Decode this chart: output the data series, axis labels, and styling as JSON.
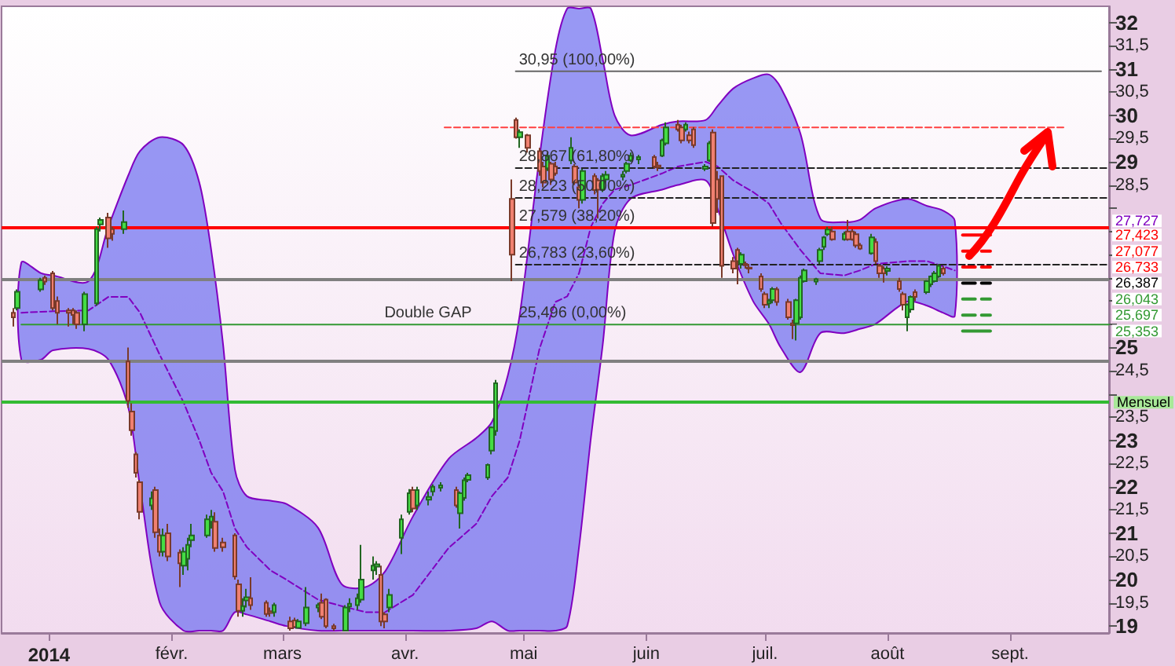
{
  "chart_data": {
    "type": "candlestick",
    "x": [
      "2013-12-23",
      "2013-12-24",
      "2013-12-30",
      "2013-12-31",
      "2014-01-02",
      "2014-01-03",
      "2014-01-06",
      "2014-01-07",
      "2014-01-08",
      "2014-01-10",
      "2014-01-13",
      "2014-01-14",
      "2014-01-16",
      "2014-01-17",
      "2014-01-20",
      "2014-01-21",
      "2014-01-22",
      "2014-01-23",
      "2014-01-24",
      "2014-01-27",
      "2014-01-28",
      "2014-01-29",
      "2014-01-30",
      "2014-01-31",
      "2014-02-03",
      "2014-02-04",
      "2014-02-05",
      "2014-02-06",
      "2014-02-10",
      "2014-02-11",
      "2014-02-12",
      "2014-02-14",
      "2014-02-17",
      "2014-02-18",
      "2014-02-19",
      "2014-02-20",
      "2014-02-21",
      "2014-02-25",
      "2014-02-26",
      "2014-02-27",
      "2014-03-03",
      "2014-03-04",
      "2014-03-05",
      "2014-03-07",
      "2014-03-10",
      "2014-03-11",
      "2014-03-12",
      "2014-03-14",
      "2014-03-17",
      "2014-03-18",
      "2014-03-20",
      "2014-03-21",
      "2014-03-24",
      "2014-03-25",
      "2014-03-26",
      "2014-03-27",
      "2014-03-28",
      "2014-03-31",
      "2014-04-02",
      "2014-04-03",
      "2014-04-04",
      "2014-04-07",
      "2014-04-08",
      "2014-04-10",
      "2014-04-14",
      "2014-04-15",
      "2014-04-16",
      "2014-04-17",
      "2014-04-22",
      "2014-04-23",
      "2014-04-24",
      "2014-04-28",
      "2014-04-29",
      "2014-04-30",
      "2014-05-02",
      "2014-05-05",
      "2014-05-06",
      "2014-05-07",
      "2014-05-08",
      "2014-05-09",
      "2014-05-13",
      "2014-05-14",
      "2014-05-15",
      "2014-05-16",
      "2014-05-19",
      "2014-05-20",
      "2014-05-21",
      "2014-05-22",
      "2014-05-26",
      "2014-05-27",
      "2014-05-28",
      "2014-05-30",
      "2014-06-03",
      "2014-06-04",
      "2014-06-05",
      "2014-06-06",
      "2014-06-09",
      "2014-06-10",
      "2014-06-11",
      "2014-06-12",
      "2014-06-13",
      "2014-06-16",
      "2014-06-17",
      "2014-06-18",
      "2014-06-19",
      "2014-06-20",
      "2014-06-23",
      "2014-06-24",
      "2014-06-25",
      "2014-06-26",
      "2014-06-27",
      "2014-06-30",
      "2014-07-01",
      "2014-07-02",
      "2014-07-03",
      "2014-07-04",
      "2014-07-07",
      "2014-07-08",
      "2014-07-09",
      "2014-07-10",
      "2014-07-11",
      "2014-07-14",
      "2014-07-15",
      "2014-07-16",
      "2014-07-17",
      "2014-07-18",
      "2014-07-21",
      "2014-07-22",
      "2014-07-23",
      "2014-07-24",
      "2014-07-25",
      "2014-07-28",
      "2014-07-29",
      "2014-07-30",
      "2014-07-31",
      "2014-08-01",
      "2014-08-04",
      "2014-08-05",
      "2014-08-06",
      "2014-08-07",
      "2014-08-08",
      "2014-08-11",
      "2014-08-12",
      "2014-08-13",
      "2014-08-14",
      "2014-08-15"
    ],
    "ohlc": [
      [
        25.75,
        25.85,
        25.45,
        25.65
      ],
      [
        25.85,
        26.25,
        25.8,
        26.2
      ],
      [
        26.25,
        26.5,
        26.2,
        26.45
      ],
      [
        26.5,
        26.55,
        26.35,
        26.42
      ],
      [
        26.6,
        26.65,
        25.8,
        25.85
      ],
      [
        26.0,
        26.1,
        25.5,
        25.75
      ],
      [
        25.8,
        25.85,
        25.45,
        25.75
      ],
      [
        25.8,
        25.85,
        25.5,
        25.7
      ],
      [
        25.75,
        25.8,
        25.4,
        25.5
      ],
      [
        25.5,
        26.2,
        25.35,
        26.15
      ],
      [
        25.95,
        27.6,
        25.9,
        27.55
      ],
      [
        27.65,
        27.8,
        27.5,
        27.75
      ],
      [
        27.8,
        27.9,
        27.15,
        27.35
      ],
      [
        27.55,
        27.6,
        27.3,
        27.45
      ],
      [
        27.55,
        27.95,
        27.45,
        27.7
      ],
      [
        24.7,
        25.0,
        23.7,
        23.85
      ],
      [
        23.62,
        23.8,
        23.1,
        23.22
      ],
      [
        22.7,
        22.75,
        22.2,
        22.3
      ],
      [
        22.1,
        22.15,
        21.3,
        21.46
      ],
      [
        21.6,
        21.9,
        21.5,
        21.75
      ],
      [
        21.93,
        22.0,
        20.9,
        21.02
      ],
      [
        20.95,
        21.1,
        20.5,
        20.6
      ],
      [
        20.6,
        21.1,
        20.5,
        20.95
      ],
      [
        21.0,
        21.2,
        20.4,
        20.5
      ],
      [
        20.58,
        20.65,
        19.84,
        20.35
      ],
      [
        20.3,
        20.7,
        20.1,
        20.6
      ],
      [
        20.45,
        20.9,
        20.2,
        20.75
      ],
      [
        20.85,
        21.2,
        20.7,
        20.95
      ],
      [
        20.95,
        21.4,
        20.9,
        21.3
      ],
      [
        21.25,
        21.5,
        21.1,
        21.36
      ],
      [
        21.25,
        21.45,
        20.6,
        20.68
      ],
      [
        20.8,
        20.9,
        20.6,
        20.7
      ],
      [
        20.95,
        21.0,
        20.0,
        20.07
      ],
      [
        19.9,
        20.0,
        19.2,
        19.33
      ],
      [
        19.33,
        19.6,
        19.2,
        19.43
      ],
      [
        19.55,
        19.8,
        19.4,
        19.62
      ],
      [
        19.6,
        20.05,
        19.35,
        19.45
      ],
      [
        19.5,
        19.55,
        19.2,
        19.26
      ],
      [
        19.32,
        19.4,
        19.2,
        19.28
      ],
      [
        19.3,
        19.5,
        19.2,
        19.45
      ],
      [
        19.1,
        19.2,
        18.9,
        18.95
      ],
      [
        19.12,
        19.18,
        18.98,
        18.98
      ],
      [
        18.96,
        19.15,
        18.96,
        19.1
      ],
      [
        19.06,
        19.84,
        19.0,
        19.4
      ],
      [
        19.4,
        19.5,
        19.3,
        19.45
      ],
      [
        19.5,
        19.7,
        19.15,
        19.2
      ],
      [
        19.57,
        19.6,
        18.95,
        19.0
      ],
      [
        19.0,
        19.05,
        18.9,
        18.95
      ],
      [
        18.9,
        19.45,
        18.9,
        19.4
      ],
      [
        19.42,
        19.6,
        19.3,
        19.48
      ],
      [
        19.45,
        19.7,
        19.35,
        19.6
      ],
      [
        19.57,
        20.75,
        19.5,
        20.0
      ],
      [
        20.2,
        20.5,
        20.0,
        20.3
      ],
      [
        20.28,
        20.4,
        20.1,
        20.33
      ],
      [
        20.1,
        20.3,
        19.0,
        19.1
      ],
      [
        19.25,
        19.3,
        18.95,
        19.1
      ],
      [
        19.4,
        19.8,
        19.3,
        19.67
      ],
      [
        20.9,
        21.4,
        20.55,
        21.3
      ],
      [
        21.46,
        21.95,
        21.4,
        21.86
      ],
      [
        21.93,
        22.0,
        21.45,
        21.53
      ],
      [
        21.6,
        22.0,
        21.5,
        21.93
      ],
      [
        21.72,
        21.9,
        21.6,
        21.78
      ],
      [
        21.9,
        22.05,
        21.8,
        22.0
      ],
      [
        21.98,
        22.1,
        21.9,
        22.03
      ],
      [
        21.93,
        22.0,
        21.55,
        21.6
      ],
      [
        21.43,
        21.9,
        21.1,
        21.86
      ],
      [
        21.76,
        22.2,
        21.7,
        22.14
      ],
      [
        22.15,
        22.3,
        22.1,
        22.25
      ],
      [
        22.2,
        22.5,
        22.15,
        22.47
      ],
      [
        22.78,
        23.3,
        22.7,
        23.28
      ],
      [
        23.2,
        24.3,
        23.1,
        24.23
      ],
      [
        28.2,
        28.62,
        26.43,
        27.0
      ],
      [
        29.9,
        29.95,
        29.5,
        29.53
      ],
      [
        29.53,
        29.7,
        29.3,
        29.64
      ],
      [
        29.57,
        29.6,
        29.2,
        29.3
      ],
      [
        29.23,
        29.3,
        28.7,
        28.8
      ],
      [
        28.9,
        29.0,
        28.45,
        28.55
      ],
      [
        28.86,
        29.2,
        28.8,
        29.13
      ],
      [
        28.96,
        29.0,
        28.5,
        28.62
      ],
      [
        28.9,
        29.0,
        28.7,
        28.75
      ],
      [
        29.03,
        29.53,
        28.95,
        29.3
      ],
      [
        28.9,
        28.95,
        28.5,
        28.55
      ],
      [
        28.45,
        28.5,
        28.0,
        28.18
      ],
      [
        28.18,
        28.85,
        28.1,
        28.8
      ],
      [
        28.69,
        28.75,
        28.3,
        28.39
      ],
      [
        28.6,
        28.65,
        27.78,
        28.4
      ],
      [
        28.4,
        28.75,
        28.35,
        28.69
      ],
      [
        28.62,
        28.8,
        28.55,
        28.72
      ],
      [
        28.68,
        28.8,
        28.6,
        28.72
      ],
      [
        28.8,
        29.0,
        28.75,
        28.96
      ],
      [
        29.03,
        29.2,
        29.0,
        29.13
      ],
      [
        29.05,
        29.15,
        28.95,
        29.1
      ],
      [
        29.1,
        29.15,
        28.85,
        28.9
      ],
      [
        28.92,
        29.0,
        28.8,
        28.88
      ],
      [
        29.13,
        29.5,
        29.1,
        29.46
      ],
      [
        29.4,
        29.85,
        29.35,
        29.74
      ],
      [
        29.8,
        29.9,
        29.65,
        29.7
      ],
      [
        29.74,
        29.8,
        29.4,
        29.46
      ],
      [
        29.7,
        29.85,
        29.65,
        29.8
      ],
      [
        29.57,
        29.65,
        29.4,
        29.46
      ],
      [
        29.7,
        29.75,
        29.3,
        29.36
      ],
      [
        28.85,
        28.95,
        28.8,
        28.9
      ],
      [
        29.03,
        29.45,
        29.0,
        29.4
      ],
      [
        29.63,
        29.7,
        27.6,
        27.68
      ],
      [
        28.62,
        28.8,
        27.9,
        28.2
      ],
      [
        28.69,
        28.7,
        26.5,
        26.76
      ],
      [
        26.86,
        26.95,
        26.6,
        26.7
      ],
      [
        27.1,
        27.15,
        26.36,
        26.86
      ],
      [
        26.8,
        27.05,
        26.7,
        27.0
      ],
      [
        26.8,
        26.85,
        26.7,
        26.77
      ],
      [
        26.72,
        26.8,
        26.6,
        26.7
      ],
      [
        26.53,
        26.6,
        26.2,
        26.26
      ],
      [
        26.15,
        26.2,
        25.85,
        25.92
      ],
      [
        25.95,
        26.05,
        25.85,
        26.0
      ],
      [
        26.02,
        26.3,
        25.95,
        26.26
      ],
      [
        26.25,
        26.3,
        25.9,
        25.98
      ],
      [
        25.98,
        26.05,
        25.6,
        25.65
      ],
      [
        25.52,
        25.6,
        25.18,
        25.48
      ],
      [
        25.52,
        26.05,
        25.15,
        26.02
      ],
      [
        25.65,
        26.55,
        25.6,
        26.5
      ],
      [
        26.43,
        26.7,
        26.4,
        26.66
      ],
      [
        26.42,
        26.5,
        26.35,
        26.47
      ],
      [
        26.86,
        27.15,
        26.8,
        27.1
      ],
      [
        27.17,
        27.4,
        27.1,
        27.37
      ],
      [
        27.44,
        27.6,
        27.4,
        27.54
      ],
      [
        27.5,
        27.6,
        27.3,
        27.33
      ],
      [
        27.33,
        27.5,
        27.3,
        27.45
      ],
      [
        27.5,
        27.75,
        27.3,
        27.33
      ],
      [
        27.5,
        27.55,
        27.3,
        27.33
      ],
      [
        27.44,
        27.5,
        27.15,
        27.2
      ],
      [
        27.2,
        27.25,
        27.1,
        27.13
      ],
      [
        27.03,
        27.45,
        27.0,
        27.37
      ],
      [
        27.27,
        27.35,
        26.8,
        26.86
      ],
      [
        26.76,
        26.8,
        26.5,
        26.6
      ],
      [
        26.7,
        26.75,
        26.4,
        26.6
      ],
      [
        26.65,
        26.75,
        26.55,
        26.7
      ],
      [
        26.43,
        26.5,
        26.2,
        26.26
      ],
      [
        26.15,
        26.2,
        25.8,
        25.92
      ],
      [
        25.65,
        25.95,
        25.35,
        25.92
      ],
      [
        25.82,
        26.12,
        25.75,
        26.09
      ],
      [
        26.19,
        26.25,
        26.0,
        26.09
      ],
      [
        26.19,
        26.45,
        26.15,
        26.43
      ],
      [
        26.36,
        26.55,
        26.3,
        26.53
      ],
      [
        26.43,
        26.65,
        26.4,
        26.6
      ],
      [
        26.53,
        26.8,
        26.5,
        26.76
      ],
      [
        26.7,
        26.75,
        26.55,
        26.6
      ]
    ],
    "series": [
      {
        "type": "line",
        "color": "#8000c0",
        "line_style": "dashed",
        "x": [
          "2013-12-25",
          "2013-12-30",
          "2014-01-02",
          "2014-01-11",
          "2014-01-16",
          "2014-01-21",
          "2014-01-24",
          "2014-01-29",
          "2014-02-04",
          "2014-02-08",
          "2014-02-11",
          "2014-02-14",
          "2014-02-17",
          "2014-02-20",
          "2014-02-26",
          "2014-03-02",
          "2014-03-10",
          "2014-03-16",
          "2014-03-22",
          "2014-03-27",
          "2014-04-03",
          "2014-04-12",
          "2014-04-19",
          "2014-04-23",
          "2014-04-27",
          "2014-04-30",
          "2014-05-05",
          "2014-05-09",
          "2014-05-12",
          "2014-05-15",
          "2014-05-18",
          "2014-05-21",
          "2014-05-24",
          "2014-05-28",
          "2014-06-05",
          "2014-06-09",
          "2014-06-16",
          "2014-06-19",
          "2014-06-23",
          "2014-06-28",
          "2014-07-02",
          "2014-07-05",
          "2014-07-10",
          "2014-07-15",
          "2014-07-21",
          "2014-07-25",
          "2014-07-29",
          "2014-08-06",
          "2014-08-11",
          "2014-08-15",
          "2014-08-18"
        ],
        "values": [
          25.75,
          25.77,
          25.78,
          25.8,
          26.09,
          26.09,
          25.75,
          24.84,
          23.82,
          23.0,
          22.3,
          21.9,
          21.1,
          20.7,
          20.2,
          20.0,
          19.57,
          19.43,
          19.3,
          19.3,
          19.67,
          20.68,
          21.2,
          21.8,
          22.2,
          23.0,
          24.97,
          25.98,
          26.1,
          26.6,
          27.6,
          28.1,
          28.4,
          28.5,
          28.75,
          28.9,
          29.0,
          28.9,
          28.6,
          28.35,
          28.1,
          27.68,
          27.1,
          26.6,
          26.55,
          26.66,
          26.8,
          26.86,
          26.86,
          26.75,
          26.66
        ],
        "lower": [
          24.74,
          24.74,
          24.94,
          24.97,
          24.74,
          23.72,
          22.0,
          19.5,
          18.9,
          18.9,
          18.9,
          18.9,
          19.3,
          19.25,
          19.1,
          19.0,
          18.9,
          18.9,
          18.9,
          18.9,
          18.9,
          18.9,
          18.95,
          19.1,
          18.9,
          18.9,
          18.9,
          18.9,
          19.0,
          20.7,
          23.05,
          25.07,
          27.5,
          28.2,
          28.4,
          28.5,
          28.6,
          28.0,
          27.0,
          26.0,
          25.51,
          25.0,
          24.47,
          25.31,
          25.31,
          25.4,
          25.51,
          25.99,
          25.9,
          25.75,
          25.68
        ],
        "upper": [
          26.83,
          26.6,
          26.55,
          26.43,
          27.6,
          28.7,
          29.23,
          29.53,
          29.36,
          28.55,
          27.1,
          25.07,
          22.37,
          21.8,
          21.7,
          21.63,
          21.12,
          19.9,
          19.84,
          20.18,
          21.36,
          22.6,
          23.05,
          23.4,
          24.4,
          25.7,
          29.1,
          31.4,
          32.3,
          32.3,
          32.3,
          31.2,
          30.0,
          29.57,
          29.8,
          29.87,
          29.9,
          30.2,
          30.58,
          30.8,
          30.88,
          30.6,
          29.6,
          27.78,
          27.7,
          27.75,
          28.0,
          28.2,
          28.05,
          27.95,
          27.73
        ]
      },
      {
        "type": "line",
        "color": "#666666",
        "line_style": "solid",
        "x": [
          "2014-04-29",
          "2014-09-24"
        ],
        "values": [
          30.95,
          30.95
        ]
      },
      {
        "type": "line",
        "color": "#ff4040",
        "line_style": "dashed",
        "x": [
          "2014-04-11",
          "2014-09-15"
        ],
        "values": [
          29.74,
          29.74
        ]
      },
      {
        "type": "line",
        "color": "#222222",
        "line_style": "dashed",
        "x": [
          "2014-04-29",
          "2014-09-26"
        ],
        "values": [
          28.867,
          28.867
        ]
      },
      {
        "type": "line",
        "color": "#222222",
        "line_style": "dashed",
        "x": [
          "2014-04-29",
          "2014-09-26"
        ],
        "values": [
          28.223,
          28.223
        ]
      },
      {
        "type": "line",
        "color": "#222222",
        "line_style": "dashed",
        "x": [
          "2014-04-29",
          "2014-09-26"
        ],
        "values": [
          26.783,
          26.783
        ]
      },
      {
        "type": "line",
        "color": "#339933",
        "line_style": "solid",
        "x": [
          "2013-12-25",
          "2014-09-26"
        ],
        "values": [
          25.496,
          25.496
        ]
      },
      {
        "type": "line",
        "name": "27,423",
        "color": "#ff0000",
        "line_style": "solid",
        "x": [
          "2014-08-20",
          "2014-08-27"
        ],
        "values": [
          27.423,
          27.423
        ]
      },
      {
        "type": "line",
        "name": "27,077",
        "color": "#ff0000",
        "line_style": "dashed",
        "x": [
          "2014-08-20",
          "2014-08-27"
        ],
        "values": [
          27.077,
          27.077
        ]
      },
      {
        "type": "line",
        "name": "26,733",
        "color": "#ff0000",
        "line_style": "dashed",
        "x": [
          "2014-08-20",
          "2014-08-27"
        ],
        "values": [
          26.733,
          26.733
        ]
      },
      {
        "type": "line",
        "name": "26,387",
        "color": "#000000",
        "line_style": "dashed",
        "x": [
          "2014-08-20",
          "2014-08-27"
        ],
        "values": [
          26.387,
          26.387
        ]
      },
      {
        "type": "line",
        "name": "26,043",
        "color": "#339933",
        "line_style": "dashed",
        "x": [
          "2014-08-20",
          "2014-08-27"
        ],
        "values": [
          26.043,
          26.043
        ]
      },
      {
        "type": "line",
        "name": "25,697",
        "color": "#339933",
        "line_style": "dashed",
        "x": [
          "2014-08-20",
          "2014-08-27"
        ],
        "values": [
          25.697,
          25.697
        ]
      },
      {
        "type": "line",
        "name": "25,353",
        "color": "#339933",
        "line_style": "solid",
        "x": [
          "2014-08-20",
          "2014-08-27"
        ],
        "values": [
          25.353,
          25.353
        ]
      }
    ],
    "ref_lines": [
      {
        "axis": "y",
        "value": 27.58,
        "color": "#ff0000"
      },
      {
        "axis": "y",
        "value": 26.46,
        "color": "#808080"
      },
      {
        "axis": "y",
        "value": 24.7,
        "color": "#808080"
      },
      {
        "axis": "y",
        "value": 23.82,
        "color": "#33bb33",
        "label": "Mensuel"
      }
    ],
    "annotations": [
      {
        "text": "30,95 (100,00%)",
        "x": "2014-04-29",
        "y": 30.95
      },
      {
        "text": "28,867 (61,80%)",
        "x": "2014-04-29",
        "y": 28.867
      },
      {
        "text": "28,223 (50,00%)",
        "x": "2014-04-29",
        "y": 28.223
      },
      {
        "text": "27,579 (38,20%)",
        "x": "2014-04-29",
        "y": 27.579
      },
      {
        "text": "26,783 (23,60%)",
        "x": "2014-04-29",
        "y": 26.783
      },
      {
        "text": "25,496 (0,00%)",
        "x": "2014-04-29",
        "y": 25.496
      },
      {
        "text": "Double GAP",
        "x": "2014-03-26",
        "y": 25.496
      },
      {
        "text": "27,727",
        "x": "2014-09-26",
        "y": 27.727
      }
    ],
    "xlim": [
      "2013-12-20",
      "2014-09-26"
    ],
    "xticks": [
      {
        "value": "2014-01-01",
        "label": "2014"
      },
      {
        "value": "2014-02-01",
        "label": "févr."
      },
      {
        "value": "2014-03-01",
        "label": "mars"
      },
      {
        "value": "2014-04-01",
        "label": "avr."
      },
      {
        "value": "2014-05-01",
        "label": "mai"
      },
      {
        "value": "2014-06-01",
        "label": "juin"
      },
      {
        "value": "2014-07-01",
        "label": "juil."
      },
      {
        "value": "2014-08-01",
        "label": "août"
      },
      {
        "value": "2014-09-01",
        "label": "sept."
      }
    ],
    "ylim": [
      18.85,
      32.35
    ],
    "yticks": [
      19,
      {
        "value": 19.5,
        "label": "19,5"
      },
      20,
      {
        "value": 20.5,
        "label": "20,5"
      },
      21,
      {
        "value": 21.5,
        "label": "21,5"
      },
      22,
      {
        "value": 22.5,
        "label": "22,5"
      },
      23,
      {
        "value": 23.5,
        "label": "23,5"
      },
      {
        "value": 24,
        "label": null
      },
      {
        "value": 24.5,
        "label": "24,5"
      },
      25,
      {
        "value": 25.5,
        "label": null
      },
      {
        "value": 26,
        "label": null
      },
      {
        "value": 26.5,
        "label": null
      },
      {
        "value": 27,
        "label": null
      },
      {
        "value": 27.5,
        "label": null
      },
      {
        "value": 28,
        "label": null
      },
      {
        "value": 28.5,
        "label": "28,5"
      },
      29,
      {
        "value": 29.5,
        "label": "29,5"
      },
      30,
      {
        "value": 30.5,
        "label": "30,5"
      },
      31,
      {
        "value": 31.5,
        "label": "31,5"
      },
      32
    ]
  }
}
